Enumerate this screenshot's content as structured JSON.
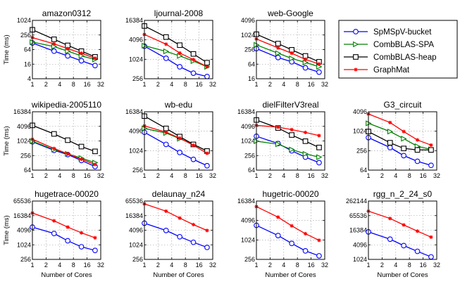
{
  "figure": {
    "ylabel": "Time (ms)",
    "xlabel": "Number of Cores"
  },
  "legend": [
    {
      "name": "SpMSpV-bucket",
      "color": "#0000ff",
      "marker": "circle"
    },
    {
      "name": "CombBLAS-SPA",
      "color": "#008000",
      "marker": "triangle-right"
    },
    {
      "name": "CombBLAS-heap",
      "color": "#000000",
      "marker": "square"
    },
    {
      "name": "GraphMat",
      "color": "#ff0000",
      "marker": "star"
    }
  ],
  "chart_data": [
    {
      "type": "line",
      "title": "amazon0312",
      "x": [
        1,
        3,
        6,
        12,
        24
      ],
      "xlim": [
        1,
        32
      ],
      "xticks": [
        1,
        2,
        4,
        8,
        16,
        32
      ],
      "ylim": [
        4,
        1024
      ],
      "yticks": [
        4,
        16,
        64,
        256,
        1024
      ],
      "ylabel": "Time (ms)",
      "xlabel": "",
      "series": [
        {
          "name": "SpMSpV-bucket",
          "values": [
            120,
            55,
            35,
            22,
            14
          ]
        },
        {
          "name": "CombBLAS-SPA",
          "values": [
            130,
            85,
            55,
            35,
            25
          ]
        },
        {
          "name": "CombBLAS-heap",
          "values": [
            420,
            170,
            95,
            55,
            32
          ]
        },
        {
          "name": "GraphMat",
          "values": [
            200,
            110,
            70,
            45,
            28
          ]
        }
      ]
    },
    {
      "type": "line",
      "title": "ljournal-2008",
      "x": [
        1,
        3,
        6,
        12,
        24
      ],
      "xlim": [
        1,
        32
      ],
      "xticks": [
        1,
        2,
        4,
        8,
        16,
        32
      ],
      "ylim": [
        256,
        16384
      ],
      "yticks": [
        256,
        1024,
        4096,
        16384
      ],
      "ylabel": "",
      "xlabel": "",
      "series": [
        {
          "name": "SpMSpV-bucket",
          "values": [
            2600,
            1100,
            600,
            380,
            300
          ]
        },
        {
          "name": "CombBLAS-SPA",
          "values": [
            2700,
            1800,
            1300,
            900,
            600
          ]
        },
        {
          "name": "CombBLAS-heap",
          "values": [
            11000,
            5000,
            2800,
            1500,
            800
          ]
        },
        {
          "name": "GraphMat",
          "values": [
            6000,
            3000,
            1600,
            1000,
            600
          ]
        }
      ]
    },
    {
      "type": "line",
      "title": "web-Google",
      "x": [
        1,
        3,
        6,
        12,
        24
      ],
      "xlim": [
        1,
        32
      ],
      "xticks": [
        1,
        2,
        4,
        8,
        16,
        32
      ],
      "ylim": [
        16,
        4096
      ],
      "yticks": [
        16,
        64,
        256,
        1024,
        4096
      ],
      "ylabel": "",
      "xlabel": "",
      "series": [
        {
          "name": "SpMSpV-bucket",
          "values": [
            280,
            120,
            80,
            45,
            30
          ]
        },
        {
          "name": "CombBLAS-SPA",
          "values": [
            400,
            180,
            110,
            75,
            50
          ]
        },
        {
          "name": "CombBLAS-heap",
          "values": [
            1100,
            450,
            250,
            140,
            80
          ]
        },
        {
          "name": "GraphMat",
          "values": [
            700,
            300,
            180,
            100,
            65
          ]
        }
      ]
    },
    {
      "type": "line",
      "title": "wikipedia-2005110",
      "x": [
        1,
        3,
        6,
        12,
        24
      ],
      "xlim": [
        1,
        32
      ],
      "xticks": [
        1,
        2,
        4,
        8,
        16,
        32
      ],
      "ylim": [
        64,
        16384
      ],
      "yticks": [
        64,
        256,
        1024,
        4096,
        16384
      ],
      "ylabel": "Time (ms)",
      "xlabel": "",
      "series": [
        {
          "name": "SpMSpV-bucket",
          "values": [
            950,
            420,
            280,
            160,
            90
          ]
        },
        {
          "name": "CombBLAS-SPA",
          "values": [
            1000,
            450,
            300,
            200,
            130
          ]
        },
        {
          "name": "CombBLAS-heap",
          "values": [
            4500,
            2000,
            1100,
            600,
            380
          ]
        },
        {
          "name": "GraphMat",
          "values": [
            1200,
            500,
            300,
            180,
            110
          ]
        }
      ]
    },
    {
      "type": "line",
      "title": "wb-edu",
      "x": [
        1,
        3,
        6,
        12,
        24
      ],
      "xlim": [
        1,
        32
      ],
      "xticks": [
        1,
        2,
        4,
        8,
        16,
        32
      ],
      "ylim": [
        256,
        16384
      ],
      "yticks": [
        256,
        1024,
        4096,
        16384
      ],
      "ylabel": "",
      "xlabel": "",
      "series": [
        {
          "name": "SpMSpV-bucket",
          "values": [
            3800,
            1600,
            900,
            550,
            350
          ]
        },
        {
          "name": "CombBLAS-SPA",
          "values": [
            5000,
            3600,
            2400,
            1600,
            1000
          ]
        },
        {
          "name": "CombBLAS-heap",
          "values": [
            12000,
            5000,
            2800,
            1600,
            1000
          ]
        },
        {
          "name": "GraphMat",
          "values": [
            6000,
            3800,
            2500,
            1500,
            850
          ]
        }
      ]
    },
    {
      "type": "line",
      "title": "dielFilterV3real",
      "x": [
        1,
        3,
        6,
        12,
        24
      ],
      "xlim": [
        1,
        32
      ],
      "xticks": [
        1,
        2,
        4,
        8,
        16,
        32
      ],
      "ylim": [
        64,
        16384
      ],
      "yticks": [
        64,
        256,
        1024,
        4096,
        16384
      ],
      "ylabel": "",
      "xlabel": "",
      "series": [
        {
          "name": "SpMSpV-bucket",
          "values": [
            1600,
            800,
            400,
            220,
            130
          ]
        },
        {
          "name": "CombBLAS-SPA",
          "values": [
            1000,
            750,
            450,
            300,
            220
          ]
        },
        {
          "name": "CombBLAS-heap",
          "values": [
            7500,
            3500,
            1800,
            1000,
            550
          ]
        },
        {
          "name": "GraphMat",
          "values": [
            4500,
            3800,
            3000,
            2300,
            1700
          ]
        }
      ]
    },
    {
      "type": "line",
      "title": "G3_circuit",
      "x": [
        1,
        3,
        6,
        12,
        24
      ],
      "xlim": [
        1,
        32
      ],
      "xticks": [
        1,
        2,
        4,
        8,
        16,
        32
      ],
      "ylim": [
        64,
        4096
      ],
      "yticks": [
        64,
        256,
        1024,
        4096
      ],
      "ylabel": "",
      "xlabel": "",
      "series": [
        {
          "name": "SpMSpV-bucket",
          "values": [
            650,
            320,
            180,
            120,
            90
          ]
        },
        {
          "name": "CombBLAS-SPA",
          "values": [
            1800,
            1000,
            600,
            350,
            280
          ]
        },
        {
          "name": "CombBLAS-heap",
          "values": [
            1000,
            450,
            300,
            270,
            270
          ]
        },
        {
          "name": "GraphMat",
          "values": [
            3500,
            1900,
            1000,
            550,
            380
          ]
        }
      ]
    },
    {
      "type": "line",
      "title": "hugetrace-00020",
      "x": [
        1,
        3,
        6,
        12,
        24
      ],
      "xlim": [
        1,
        32
      ],
      "xticks": [
        1,
        2,
        4,
        8,
        16,
        32
      ],
      "ylim": [
        256,
        65536
      ],
      "yticks": [
        256,
        1024,
        4096,
        16384,
        65536
      ],
      "ylabel": "Time (ms)",
      "xlabel": "Number of Cores",
      "series": [
        {
          "name": "SpMSpV-bucket",
          "values": [
            5500,
            3000,
            1500,
            850,
            600
          ]
        },
        {
          "name": "GraphMat",
          "values": [
            21000,
            10000,
            5500,
            3200,
            2000
          ]
        }
      ]
    },
    {
      "type": "line",
      "title": "delaunay_n24",
      "x": [
        1,
        3,
        6,
        12,
        24
      ],
      "xlim": [
        1,
        32
      ],
      "xticks": [
        1,
        2,
        4,
        8,
        16,
        32
      ],
      "ylim": [
        256,
        65536
      ],
      "yticks": [
        256,
        1024,
        4096,
        16384,
        65536
      ],
      "ylabel": "",
      "xlabel": "Number of Cores",
      "series": [
        {
          "name": "SpMSpV-bucket",
          "values": [
            8000,
            4000,
            2200,
            1300,
            800
          ]
        },
        {
          "name": "GraphMat",
          "values": [
            50000,
            25000,
            13000,
            7000,
            4000
          ]
        }
      ]
    },
    {
      "type": "line",
      "title": "hugetric-00020",
      "x": [
        1,
        3,
        6,
        12,
        24
      ],
      "xlim": [
        1,
        32
      ],
      "xticks": [
        1,
        2,
        4,
        8,
        16,
        32
      ],
      "ylim": [
        256,
        16384
      ],
      "yticks": [
        256,
        1024,
        4096,
        16384
      ],
      "ylabel": "",
      "xlabel": "Number of Cores",
      "series": [
        {
          "name": "SpMSpV-bucket",
          "values": [
            2900,
            1400,
            800,
            470,
            330
          ]
        },
        {
          "name": "GraphMat",
          "values": [
            11000,
            5200,
            2800,
            1600,
            1000
          ]
        }
      ]
    },
    {
      "type": "line",
      "title": "rgg_n_2_24_s0",
      "x": [
        1,
        3,
        6,
        12,
        24
      ],
      "xlim": [
        1,
        32
      ],
      "xticks": [
        1,
        2,
        4,
        8,
        16,
        32
      ],
      "ylim": [
        1024,
        262144
      ],
      "yticks": [
        1024,
        4096,
        16384,
        65536,
        262144
      ],
      "ylabel": "",
      "xlabel": "Number of Cores",
      "series": [
        {
          "name": "SpMSpV-bucket",
          "values": [
            14000,
            7000,
            3800,
            2200,
            1300
          ]
        },
        {
          "name": "GraphMat",
          "values": [
            100000,
            50000,
            27000,
            15000,
            8500
          ]
        }
      ]
    }
  ]
}
